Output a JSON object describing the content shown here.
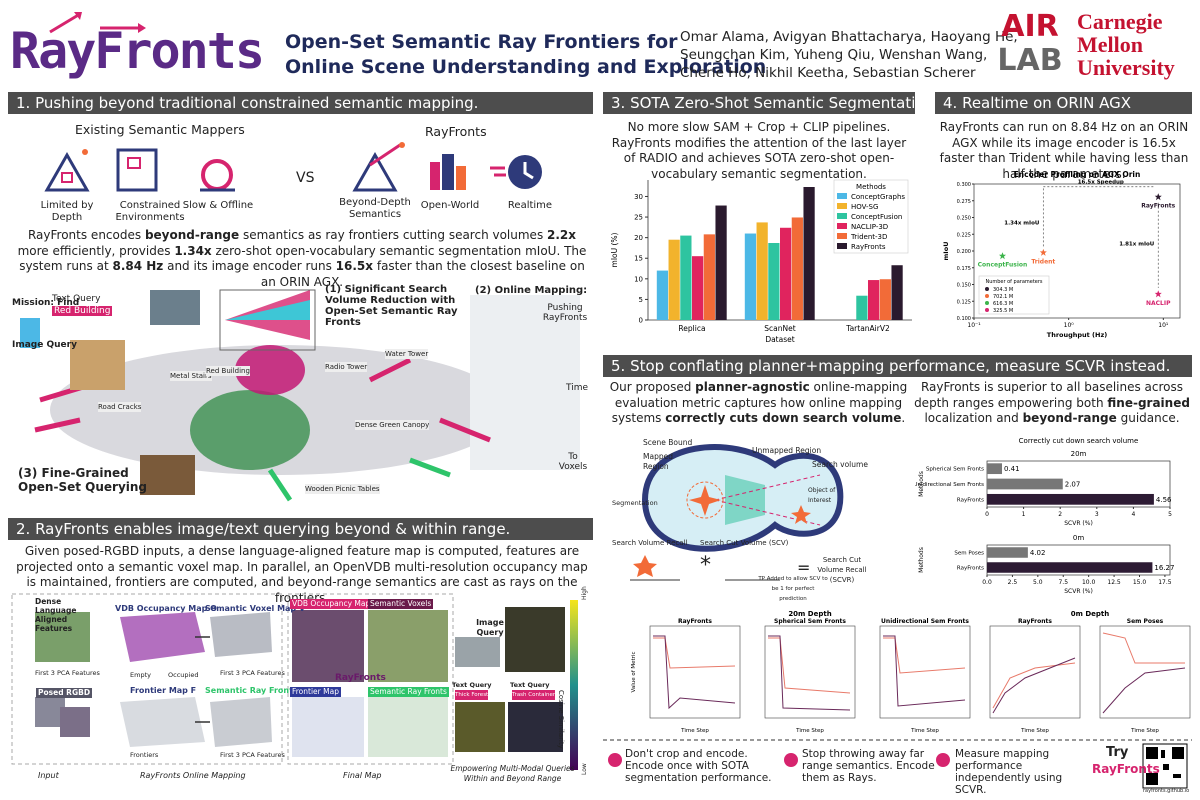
{
  "header": {
    "logo": "RayFronts",
    "title": [
      "Open-Set Semantic Ray Frontiers for",
      "Online Scene Understanding and Exploration"
    ],
    "authors": [
      "Omar Alama, Avigyan Bhattacharya, Haoyang He,",
      "Seungchan Kim, Yuheng Qiu, Wenshan Wang,",
      "Cherie Ho, Nikhil Keetha, Sebastian Scherer"
    ],
    "lab": [
      "AIR",
      "LAB"
    ],
    "university": [
      "Carnegie",
      "Mellon",
      "University"
    ]
  },
  "section1": {
    "heading": "1. Pushing beyond traditional constrained semantic mapping.",
    "existing": "Existing Semantic Mappers",
    "ours": "RayFronts",
    "existing_items": [
      "Limited by Depth",
      "Constrained Environments",
      "Slow & Offline"
    ],
    "vs": "VS",
    "ours_items": [
      "Beyond-Depth Semantics",
      "Open-World",
      "Realtime"
    ],
    "body": [
      "RayFronts encodes ",
      {
        "text": "beyond-range",
        "bold": true
      },
      " semantics as ray frontiers cutting search volumes ",
      {
        "text": "2.2x",
        "bold": true
      },
      " more efficiently, provides ",
      {
        "text": "1.34x",
        "bold": true
      },
      " zero-shot open-vocabulary semantic segmentation mIoU. The system runs at ",
      {
        "text": "8.84 Hz",
        "bold": true
      },
      " and its image encoder runs ",
      {
        "text": "16.5x",
        "bold": true
      },
      " faster than the closest baseline on an ORIN AGX."
    ],
    "figure": [
      "Mission: Find",
      "Text Query",
      "Red Building",
      "Image Query",
      "(1) Significant Search Volume Reduction with Open-Set Semantic Ray Fronts",
      "(2) Online Mapping:",
      "Pushing RayFronts",
      "Time",
      "To Voxels",
      "(3) Fine-Grained Open-Set Querying",
      "Road Cracks",
      "Metal Stairs",
      "Red Building",
      "Radio Tower",
      "Water Tower",
      "Dense Green Canopy",
      "Wooden Picnic Tables"
    ]
  },
  "section2": {
    "heading": "2. RayFronts enables image/text querying beyond & within range.",
    "body": [
      "Given posed-RGBD inputs, a dense language-aligned feature map is computed, features are projected onto a semantic voxel map. In parallel, an OpenVDB multi-resolution occupancy map is maintained, frontiers are computed, and beyond-range semantics are cast as rays on the frontiers."
    ],
    "figure": [
      "Dense Language Aligned Features",
      "First 3 PCA Features",
      "Posed RGBD",
      "Input",
      "VDB Occupancy Map O",
      "Empty",
      "Occupied",
      "Semantic Voxel Map V",
      "First 3 PCA Features",
      "Frontier Map F",
      "Frontiers",
      "Semantic Ray Fronts R",
      "First 3 PCA Features",
      "RayFronts Online Mapping",
      "VDB Occupancy Map",
      "Semantic Voxels",
      "RayFronts",
      "Frontier Map",
      "Semantic Ray Fronts",
      "Final Map",
      "Image Query",
      "Text Query",
      "Thick Forest",
      "Text Query",
      "Trash Container",
      "High",
      "Cosine Similarity",
      "Low",
      "Empowering Multi-Modal Queries Within and Beyond Range"
    ]
  },
  "section3": {
    "heading": "3. SOTA Zero-Shot Semantic Segmentation.",
    "body": [
      "No more slow SAM + Crop + CLIP pipelines. RayFronts modifies the attention of the last layer of RADIO and achieves SOTA zero-shot open-vocabulary semantic segmentation."
    ],
    "chart": {
      "type": "bar",
      "categories": [
        "Replica",
        "ScanNet",
        "TartanAirV2"
      ],
      "xlabel": "Dataset",
      "ylabel": "mIoU (%)",
      "legend_title": "Methods",
      "series": [
        {
          "name": "ConceptGraphs",
          "color": "#4cb8e6",
          "values": [
            12.0,
            21.0,
            null
          ]
        },
        {
          "name": "HOV-SG",
          "color": "#f2b32c",
          "values": [
            19.5,
            23.7,
            null
          ]
        },
        {
          "name": "ConceptFusion",
          "color": "#2ec4a0",
          "values": [
            20.5,
            18.7,
            5.9
          ]
        },
        {
          "name": "NACLIP-3D",
          "color": "#e0245e",
          "values": [
            15.5,
            22.4,
            9.7
          ]
        },
        {
          "name": "Trident-3D",
          "color": "#f26b38",
          "values": [
            20.8,
            24.9,
            9.9
          ]
        },
        {
          "name": "RayFronts",
          "color": "#2a1a2e",
          "values": [
            27.8,
            32.3,
            13.3
          ]
        }
      ],
      "ylim": [
        0,
        34
      ],
      "yticks": [
        0,
        5,
        10,
        15,
        20,
        25,
        30
      ]
    }
  },
  "section4": {
    "heading": "4. Realtime on ORIN AGX",
    "body": [
      "RayFronts can run on 8.84 Hz on an ORIN AGX while its image encoder is 16.5x faster than Trident while having less than half the parameters."
    ],
    "chart": {
      "type": "scatter",
      "title": "Encoder Profiling on AGX Orin",
      "xlabel": "Throughput (Hz)",
      "ylabel": "mIoU",
      "log_x": true,
      "points": [
        {
          "name": "RayFronts",
          "x": 8.84,
          "y": 0.281,
          "params": "304.3 M",
          "color": "#2a1a2e"
        },
        {
          "name": "Trident",
          "x": 0.54,
          "y": 0.198,
          "params": "702.1 M",
          "color": "#f26b38"
        },
        {
          "name": "ConceptFusion",
          "x": 0.2,
          "y": 0.193,
          "params": "616.3 M",
          "color": "#3cb44b"
        },
        {
          "name": "NACLIP",
          "x": 8.84,
          "y": 0.136,
          "params": "325.5 M",
          "color": "#d6246e"
        }
      ],
      "legend_title": "Number of parameters",
      "annotations": [
        "16.5x Speedup",
        "1.34x mIoU",
        "1.81x mIoU"
      ],
      "xlim": [
        0.1,
        15
      ],
      "xticks": [
        {
          "value": 0.1,
          "label": "10⁻¹"
        },
        {
          "value": 1,
          "label": "10⁰"
        },
        {
          "value": 10,
          "label": "10¹"
        }
      ],
      "ylim": [
        0.1,
        0.3
      ],
      "yticks": [
        {
          "value": 0.1,
          "label": "0.100"
        },
        {
          "value": 0.125,
          "label": "0.125"
        },
        {
          "value": 0.15,
          "label": "0.150"
        },
        {
          "value": 0.175,
          "label": "0.175"
        },
        {
          "value": 0.2,
          "label": "0.200"
        },
        {
          "value": 0.225,
          "label": "0.225"
        },
        {
          "value": 0.25,
          "label": "0.250"
        },
        {
          "value": 0.275,
          "label": "0.275"
        },
        {
          "value": 0.3,
          "label": "0.300"
        }
      ]
    }
  },
  "section5": {
    "heading": "5. Stop conflating planner+mapping performance, measure SCVR instead.",
    "left": [
      "Our proposed ",
      {
        "text": "planner-agnostic",
        "bold": true
      },
      " online-mapping evaluation metric captures how online mapping systems ",
      {
        "text": "correctly cuts down search volume",
        "bold": true
      },
      "."
    ],
    "right": [
      "RayFronts is superior to all baselines across depth ranges empowering both ",
      {
        "text": "fine-grained",
        "bold": true
      },
      " localization and ",
      {
        "text": "beyond-range",
        "bold": true
      },
      " guidance."
    ],
    "diagram": [
      "Scene Bound",
      "Mapped Region",
      "Unmapped Region",
      "Search volume",
      "Segmentation",
      "Object of Interest",
      "Search Volume Recall",
      "Search Cut Volume (SCV)",
      "Search Cut Volume Recall (SCVR)",
      "TP Added to allow SCV to be 1 for perfect prediction",
      "*",
      "="
    ],
    "chart": {
      "type": "hbar",
      "title": "Correctly cut down search volume",
      "ylabel": "Methods",
      "panels": [
        {
          "subtitle": "20m",
          "categories": [
            "Spherical Sem Fronts",
            "Unidirectional Sem Fronts",
            "RayFronts"
          ],
          "values": [
            0.41,
            2.07,
            4.56
          ],
          "colors": [
            "#777777",
            "#777777",
            "#2d1b34"
          ],
          "xlabel": "SCVR (%)",
          "xlim": [
            0,
            5
          ],
          "xticks": [
            0,
            1,
            2,
            3,
            4,
            5
          ]
        },
        {
          "subtitle": "0m",
          "categories": [
            "Sem Poses",
            "RayFronts"
          ],
          "values": [
            4.02,
            16.27
          ],
          "colors": [
            "#777777",
            "#2d1b34"
          ],
          "xlabel": "SCVR (%)",
          "xlim": [
            0,
            18
          ],
          "xticks": [
            {
              "value": 0,
              "label": "0.0"
            },
            {
              "value": 2.5,
              "label": "2.5"
            },
            {
              "value": 5,
              "label": "5.0"
            },
            {
              "value": 7.5,
              "label": "7.5"
            },
            {
              "value": 10,
              "label": "10.0"
            },
            {
              "value": 12.5,
              "label": "12.5"
            },
            {
              "value": 15,
              "label": "15.0"
            },
            {
              "value": 17.5,
              "label": "17.5"
            }
          ]
        }
      ]
    },
    "plots": {
      "groups": [
        "20m Depth",
        "0m Depth"
      ],
      "titles": [
        "RayFronts",
        "Spherical Sem Fronts",
        "Unidirectional Sem Fronts",
        "RayFronts",
        "Sem Poses"
      ],
      "xlabel": "Time Step",
      "ylabel": "Value of Metric"
    }
  },
  "footer": {
    "tips": [
      "Don't crop and encode. Encode once with SOTA segmentation performance.",
      "Stop throwing away far range semantics. Encode them as Rays.",
      "Measure mapping performance independently using SCVR."
    ],
    "try": "Try",
    "name": "RayFronts",
    "url": "rayfronts.github.io"
  }
}
